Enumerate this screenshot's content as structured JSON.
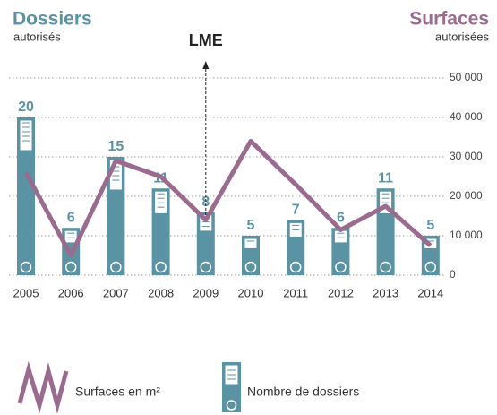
{
  "chart_data": {
    "type": "bar-line",
    "title": "Dossiers",
    "subtitle": "autorisés",
    "y2_title": "Surfaces",
    "y2_subtitle": "autorisées",
    "annotations": [
      {
        "text": "LME",
        "category": "2009"
      }
    ],
    "categories": [
      "2005",
      "2006",
      "2007",
      "2008",
      "2009",
      "2010",
      "2011",
      "2012",
      "2013",
      "2014"
    ],
    "series": [
      {
        "name": "Nombre de dossiers",
        "type": "bar",
        "color": "#5a93a3",
        "values": [
          20,
          6,
          15,
          11,
          8,
          5,
          7,
          6,
          11,
          5
        ]
      },
      {
        "name": "Surfaces en m²",
        "type": "line",
        "axis": "y2",
        "color": "#9b6b8f",
        "values": [
          26000,
          5000,
          29000,
          25000,
          14000,
          34000,
          23000,
          11500,
          17500,
          7500
        ]
      }
    ],
    "ylim": [
      0,
      25
    ],
    "y2lim": [
      0,
      50000
    ],
    "y2ticks": [
      0,
      {
        "value": 10000,
        "label": "10 000"
      },
      {
        "value": 20000,
        "label": "20 000"
      },
      {
        "value": 30000,
        "label": "30 000"
      },
      {
        "value": 40000,
        "label": "40 000"
      },
      {
        "value": 50000,
        "label": "50 000"
      }
    ],
    "grid": true
  }
}
